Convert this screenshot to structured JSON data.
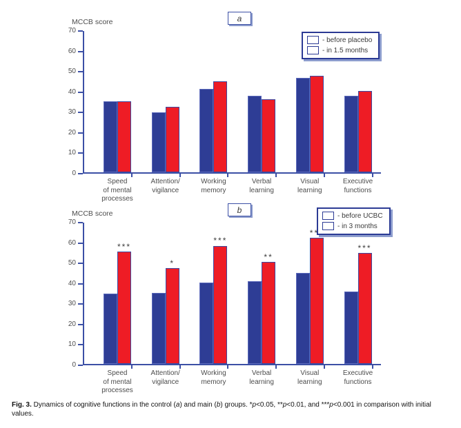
{
  "figure": {
    "colors": {
      "bar_blue": "#2e3d95",
      "bar_blue_border": "#5b69bb",
      "bar_red": "#ee1c25",
      "bar_red_border": "#3a4aa3",
      "axis_blue": "#3b4fa5",
      "text_gray": "#4c4c4c",
      "legend_border": "#2b3a94"
    },
    "caption_segments": [
      {
        "text": "Fig. 3.",
        "bold": true
      },
      {
        "text": " Dynamics of cognitive functions in the control ("
      },
      {
        "text": "a",
        "italic": true
      },
      {
        "text": ") and main ("
      },
      {
        "text": "b",
        "italic": true
      },
      {
        "text": ") groups. *"
      },
      {
        "text": "p",
        "italic": true
      },
      {
        "text": "<0.05, **"
      },
      {
        "text": "p",
        "italic": true
      },
      {
        "text": "<0.01, and ***"
      },
      {
        "text": "p",
        "italic": true
      },
      {
        "text": "<0.001 in comparison with initial values."
      }
    ]
  },
  "chart_data": [
    {
      "type": "bar",
      "panel_label": "a",
      "axis_title": "MCCB score",
      "ylim": [
        0,
        70
      ],
      "ytick_step": 10,
      "grid": false,
      "legend_position": "top-right",
      "categories": [
        [
          "Speed",
          "of mental",
          "processes"
        ],
        [
          "Attention/",
          "vigilance"
        ],
        [
          "Working",
          "memory"
        ],
        [
          "Verbal",
          "learning"
        ],
        [
          "Visual",
          "learning"
        ],
        [
          "Executive",
          "functions"
        ]
      ],
      "series": [
        {
          "name": "- before placebo",
          "color": "#2e3d95",
          "border": "#5b69bb",
          "values": [
            35,
            29.5,
            41,
            37.5,
            46.5,
            37.5
          ]
        },
        {
          "name": "- in 1.5 months",
          "color": "#ee1c25",
          "border": "#3a4aa3",
          "values": [
            35,
            32,
            44.5,
            36,
            47.5,
            40
          ]
        }
      ],
      "annotations": [
        "",
        "",
        "",
        "",
        "",
        ""
      ]
    },
    {
      "type": "bar",
      "panel_label": "b",
      "axis_title": "MCCB score",
      "ylim": [
        0,
        70
      ],
      "ytick_step": 10,
      "grid": false,
      "legend_position": "top-right",
      "categories": [
        [
          "Speed",
          "of mental",
          "processes"
        ],
        [
          "Attention/",
          "vigilance"
        ],
        [
          "Working",
          "memory"
        ],
        [
          "Verbal",
          "learning"
        ],
        [
          "Visual",
          "learning"
        ],
        [
          "Executive",
          "functions"
        ]
      ],
      "series": [
        {
          "name": "- before UCBC",
          "color": "#2e3d95",
          "border": "#5b69bb",
          "values": [
            34.5,
            35,
            40,
            40.5,
            44.5,
            35.5
          ]
        },
        {
          "name": "- in 3 months",
          "color": "#ee1c25",
          "border": "#3a4aa3",
          "values": [
            55,
            47,
            58,
            50,
            62,
            54.5
          ]
        }
      ],
      "annotations": [
        "***",
        "*",
        "***",
        "**",
        "***",
        "***"
      ]
    }
  ]
}
